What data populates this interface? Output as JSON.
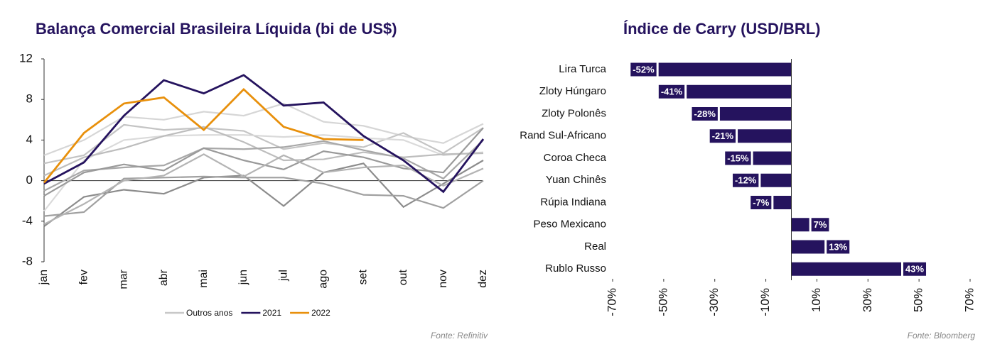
{
  "chart_data": [
    {
      "type": "line",
      "title": "Balança Comercial Brasileira Líquida (bi de US$)",
      "categories": [
        "jan",
        "fev",
        "mar",
        "abr",
        "mai",
        "jun",
        "jul",
        "ago",
        "set",
        "out",
        "nov",
        "dez"
      ],
      "ylim": [
        -8,
        12
      ],
      "yticks": [
        12,
        8,
        4,
        0,
        -4,
        -8
      ],
      "series": [
        {
          "name": "Outros anos",
          "color": "#c8c8c8",
          "line_colors": [
            "#d6d6d6",
            "#c4c4c4",
            "#dadada",
            "#bdbdbd",
            "#a8a8a8",
            "#9a9a9a",
            "#8c8c8c",
            "#a0a0a0",
            "#b4b4b4"
          ],
          "lines": [
            [
              2.5,
              4.0,
              6.3,
              6.0,
              6.8,
              6.4,
              7.6,
              5.8,
              5.4,
              4.4,
              3.7,
              5.6
            ],
            [
              1.7,
              2.5,
              5.5,
              5.0,
              5.2,
              4.9,
              3.1,
              3.7,
              3.3,
              4.7,
              2.7,
              5.2
            ],
            [
              -3.0,
              2.0,
              4.0,
              4.4,
              4.5,
              4.5,
              4.3,
              4.5,
              4.2,
              4.0,
              2.5,
              2.8
            ],
            [
              0.5,
              2.3,
              3.2,
              4.4,
              5.3,
              3.8,
              2.0,
              2.1,
              2.8,
              2.3,
              2.6,
              2.7
            ],
            [
              -1.0,
              1.0,
              1.3,
              1.5,
              3.2,
              3.1,
              3.3,
              3.9,
              3.0,
              2.2,
              0.2,
              4.0
            ],
            [
              -1.5,
              0.8,
              1.6,
              1.0,
              3.2,
              2.0,
              1.1,
              2.9,
              2.3,
              1.2,
              0.8,
              5.2
            ],
            [
              -4.5,
              -1.6,
              -0.9,
              -1.3,
              0.3,
              0.5,
              -2.5,
              0.8,
              1.7,
              -2.6,
              -0.3,
              2.0
            ],
            [
              -3.5,
              -3.1,
              0.2,
              0.3,
              0.4,
              0.3,
              0.3,
              -0.3,
              -1.4,
              -1.5,
              -2.7,
              0
            ],
            [
              -4.3,
              -2.3,
              0.0,
              0.5,
              2.6,
              0.4,
              2.5,
              0.8,
              1.3,
              1.5,
              -0.5,
              1.2
            ]
          ]
        },
        {
          "name": "2021",
          "color": "#25135e",
          "values": [
            -0.3,
            1.8,
            6.4,
            9.9,
            8.6,
            10.4,
            7.4,
            7.7,
            4.4,
            2.0,
            -1.1,
            4.1
          ]
        },
        {
          "name": "2022",
          "color": "#e8900c",
          "values": [
            -0.2,
            4.7,
            7.6,
            8.2,
            5.0,
            9.0,
            5.3,
            4.1,
            4.0,
            null,
            null,
            null
          ]
        }
      ],
      "source": "Fonte: Refinitiv"
    },
    {
      "type": "barh",
      "title": "Índice de Carry (USD/BRL)",
      "categories": [
        "Lira Turca",
        "Zloty Húngaro",
        "Zloty Polonês",
        "Rand Sul-Africano",
        "Coroa Checa",
        "Yuan Chinês",
        "Rúpia Indiana",
        "Peso Mexicano",
        "Real",
        "Rublo Russo"
      ],
      "values": [
        -52,
        -41,
        -28,
        -21,
        -15,
        -12,
        -7,
        7,
        13,
        43
      ],
      "value_labels": [
        "-52%",
        "-41%",
        "-28%",
        "-21%",
        "-15%",
        "-12%",
        "-7%",
        "7%",
        "13%",
        "43%"
      ],
      "color": "#25135e",
      "xlim": [
        -70,
        70
      ],
      "xticks": [
        {
          "value": -70,
          "label": "-70%"
        },
        {
          "value": -50,
          "label": "-50%"
        },
        {
          "value": -30,
          "label": "-30%"
        },
        {
          "value": -10,
          "label": "-10%"
        },
        {
          "value": 10,
          "label": "10%"
        },
        {
          "value": 30,
          "label": "30%"
        },
        {
          "value": 50,
          "label": "50%"
        },
        {
          "value": 70,
          "label": "70%"
        }
      ],
      "source": "Fonte: Bloomberg"
    }
  ]
}
